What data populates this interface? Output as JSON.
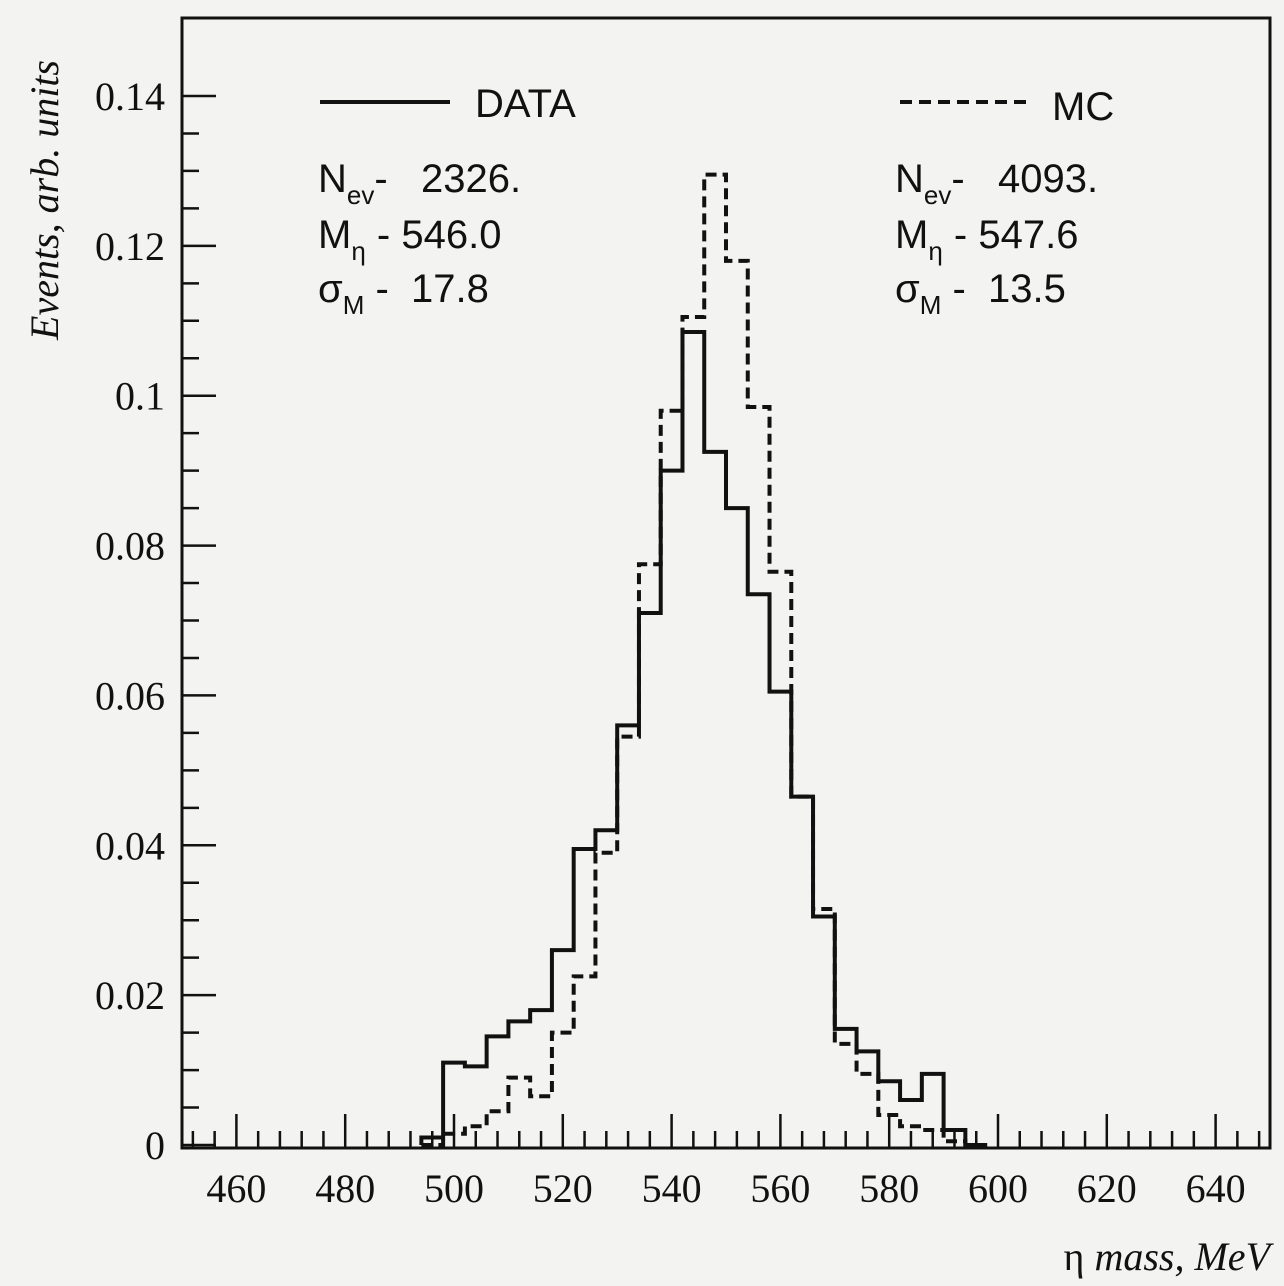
{
  "chart_data": {
    "type": "histogram",
    "xlabel_symbol": "η",
    "xlabel_text": "mass, MeV",
    "ylabel": "Events, arb. units",
    "xlim": [
      450,
      650
    ],
    "ylim": [
      0,
      0.14
    ],
    "xticks": [
      "460",
      "480",
      "500",
      "520",
      "540",
      "560",
      "580",
      "600",
      "620",
      "640"
    ],
    "yticks": [
      "0",
      "0.02",
      "0.04",
      "0.06",
      "0.08",
      "0.1",
      "0.12",
      "0.14"
    ],
    "bin_edges": [
      494,
      498,
      502,
      506,
      510,
      514,
      518,
      522,
      526,
      530,
      534,
      538,
      542,
      546,
      550,
      554,
      558,
      562,
      566,
      570,
      574,
      578,
      582,
      586,
      590,
      594,
      598
    ],
    "legend": [
      {
        "name": "DATA",
        "style": "solid"
      },
      {
        "name": "MC",
        "style": "dashed"
      }
    ],
    "series": [
      {
        "name": "DATA",
        "style": "solid",
        "values": [
          0.001,
          0.011,
          0.0105,
          0.0145,
          0.0165,
          0.018,
          0.026,
          0.0395,
          0.042,
          0.056,
          0.071,
          0.09,
          0.1085,
          0.0925,
          0.085,
          0.0735,
          0.0605,
          0.0465,
          0.0305,
          0.0155,
          0.0125,
          0.0085,
          0.006,
          0.0095,
          0.002,
          0.0
        ]
      },
      {
        "name": "MC",
        "style": "dashed",
        "values": [
          0.0,
          0.0015,
          0.0025,
          0.0045,
          0.009,
          0.0065,
          0.015,
          0.0225,
          0.039,
          0.0545,
          0.0775,
          0.098,
          0.1105,
          0.1295,
          0.118,
          0.0985,
          0.0765,
          0.0465,
          0.0315,
          0.0135,
          0.0095,
          0.004,
          0.0025,
          0.002,
          0.0005,
          0.0
        ]
      }
    ],
    "stats": {
      "data": {
        "nev_label": "N",
        "nev_sub": "ev",
        "nev_value": "-   2326.",
        "m_label": "M",
        "m_sub": "η",
        "m_value": " - 546.0",
        "s_label": "σ",
        "s_sub": "M",
        "s_value": " -  17.8"
      },
      "mc": {
        "nev_label": "N",
        "nev_sub": "ev",
        "nev_value": "-   4093.",
        "m_label": "M",
        "m_sub": "η",
        "m_value": " - 547.6",
        "s_label": "σ",
        "s_sub": "M",
        "s_value": " -  13.5"
      }
    },
    "colors": {
      "line": "#111111",
      "background": "#f3f3f1"
    }
  }
}
